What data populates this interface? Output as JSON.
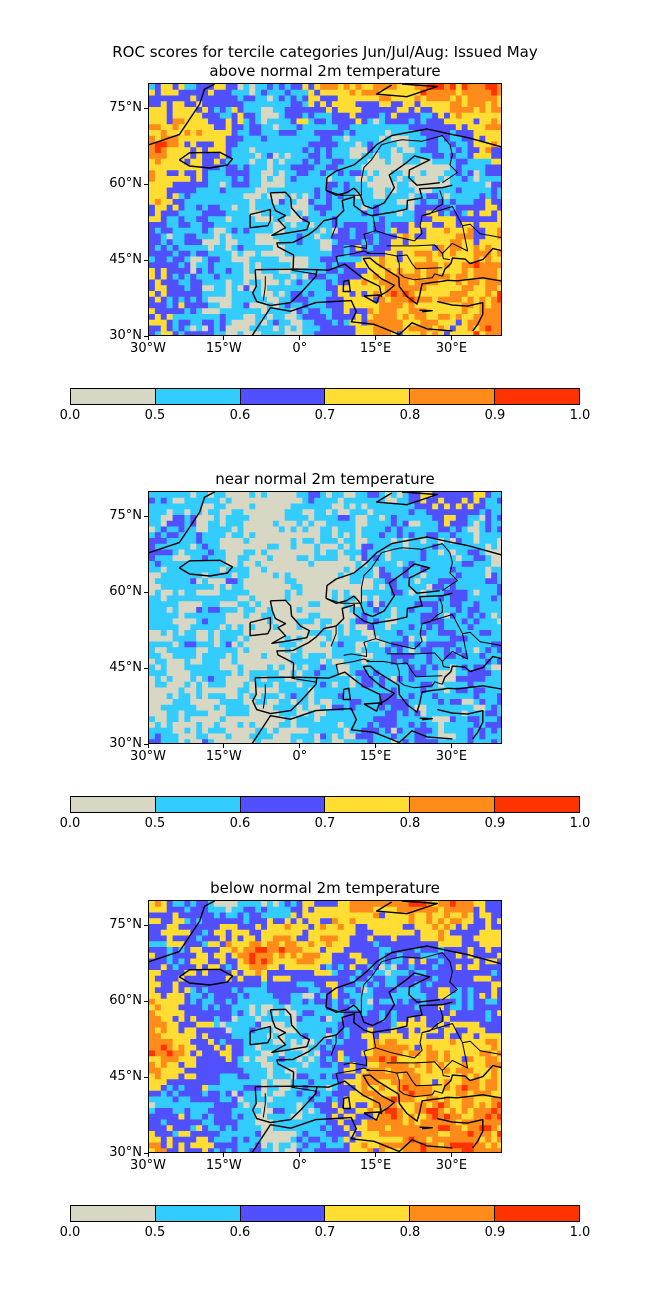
{
  "suptitle": "ROC scores for tercile categories Jun/Jul/Aug: Issued May",
  "colors": {
    "bins": [
      "#d8d7c4",
      "#33ccff",
      "#5050ff",
      "#ffdd33",
      "#ff8c1a",
      "#ff3300"
    ],
    "coast": "#000000"
  },
  "colorbar": {
    "labels": [
      "0.0",
      "0.5",
      "0.6",
      "0.7",
      "0.8",
      "0.9",
      "1.0"
    ]
  },
  "lat_ticks": [
    "75°N",
    "60°N",
    "45°N",
    "30°N"
  ],
  "lon_ticks": [
    "30°W",
    "15°W",
    "0°",
    "15°E",
    "30°E"
  ],
  "panels": [
    {
      "title": "above normal 2m temperature"
    },
    {
      "title": "near normal 2m temperature"
    },
    {
      "title": "below normal 2m temperature"
    }
  ],
  "chart_data": [
    {
      "type": "heatmap",
      "title": "above normal 2m temperature",
      "x_range": [
        -30,
        40
      ],
      "y_range": [
        30,
        80
      ],
      "bin_edges": [
        0.0,
        0.5,
        0.6,
        0.7,
        0.8,
        0.9,
        1.0
      ],
      "grid_note": "ROC score field, 7 lon columns (-30..40) x 6 lat rows (80..30)",
      "z": [
        [
          0.6,
          0.7,
          0.5,
          0.8,
          0.85,
          0.9,
          0.85
        ],
        [
          0.85,
          0.75,
          0.55,
          0.6,
          0.5,
          0.6,
          0.8
        ],
        [
          0.8,
          0.6,
          0.5,
          0.6,
          0.45,
          0.5,
          0.6
        ],
        [
          0.6,
          0.55,
          0.5,
          0.55,
          0.65,
          0.8,
          0.75
        ],
        [
          0.75,
          0.55,
          0.5,
          0.6,
          0.85,
          0.8,
          0.85
        ],
        [
          0.65,
          0.55,
          0.5,
          0.6,
          0.8,
          0.75,
          0.85
        ]
      ]
    },
    {
      "type": "heatmap",
      "title": "near normal 2m temperature",
      "x_range": [
        -30,
        40
      ],
      "y_range": [
        30,
        80
      ],
      "bin_edges": [
        0.0,
        0.5,
        0.6,
        0.7,
        0.8,
        0.9,
        1.0
      ],
      "z": [
        [
          0.55,
          0.5,
          0.45,
          0.55,
          0.5,
          0.75,
          0.6
        ],
        [
          0.6,
          0.55,
          0.45,
          0.5,
          0.55,
          0.55,
          0.5
        ],
        [
          0.5,
          0.55,
          0.45,
          0.45,
          0.55,
          0.6,
          0.55
        ],
        [
          0.5,
          0.55,
          0.45,
          0.5,
          0.55,
          0.6,
          0.55
        ],
        [
          0.45,
          0.5,
          0.5,
          0.55,
          0.6,
          0.55,
          0.6
        ],
        [
          0.55,
          0.5,
          0.45,
          0.5,
          0.6,
          0.55,
          0.6
        ]
      ]
    },
    {
      "type": "heatmap",
      "title": "below normal 2m temperature",
      "x_range": [
        -30,
        40
      ],
      "y_range": [
        30,
        80
      ],
      "bin_edges": [
        0.0,
        0.5,
        0.6,
        0.7,
        0.8,
        0.9,
        1.0
      ],
      "z": [
        [
          0.8,
          0.55,
          0.5,
          0.75,
          0.85,
          0.9,
          0.6
        ],
        [
          0.6,
          0.7,
          0.92,
          0.75,
          0.6,
          0.65,
          0.75
        ],
        [
          0.8,
          0.6,
          0.5,
          0.6,
          0.55,
          0.65,
          0.6
        ],
        [
          0.92,
          0.7,
          0.5,
          0.55,
          0.85,
          0.75,
          0.8
        ],
        [
          0.55,
          0.6,
          0.5,
          0.6,
          0.85,
          0.8,
          0.85
        ],
        [
          0.8,
          0.7,
          0.5,
          0.6,
          0.8,
          0.9,
          0.85
        ]
      ]
    }
  ]
}
